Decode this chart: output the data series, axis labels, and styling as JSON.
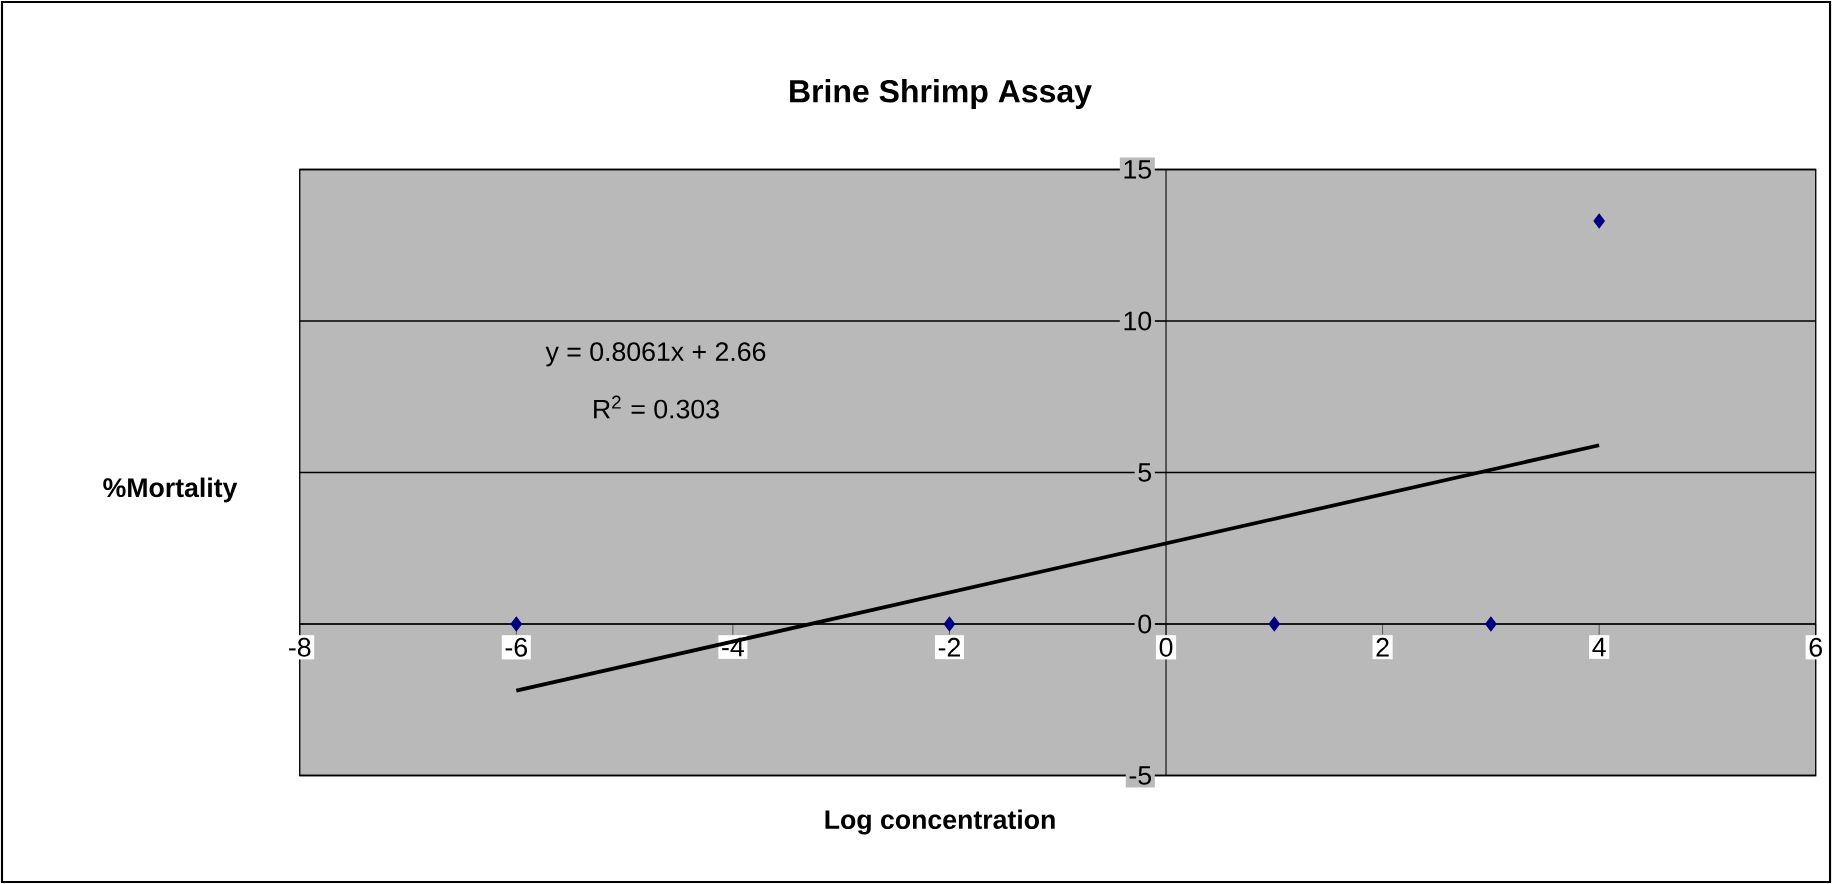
{
  "chart_data": {
    "type": "scatter",
    "title": "Brine Shrimp Assay",
    "xlabel": "Log concentration",
    "ylabel": "%Mortality",
    "xlim": [
      -8,
      6
    ],
    "xticks": [
      -8,
      -6,
      -4,
      -2,
      0,
      2,
      4,
      6
    ],
    "ylim": [
      -5,
      15
    ],
    "yticks": [
      -5,
      0,
      5,
      10,
      15
    ],
    "grid": "y",
    "marker": "diamond",
    "series": [
      {
        "color": "#000080",
        "x": [
          -6,
          -2,
          1,
          3,
          4
        ],
        "values": [
          0,
          0,
          0,
          0,
          13.3
        ]
      },
      {
        "type": "line",
        "color": "#000000",
        "marker": "none",
        "line_style": "solid",
        "x": [
          -6,
          4
        ],
        "values": [
          -2.2,
          5.9
        ]
      }
    ],
    "annotations": [
      "y = 0.8061x + 2.66",
      "R$^{2}$ = 0.303"
    ]
  }
}
